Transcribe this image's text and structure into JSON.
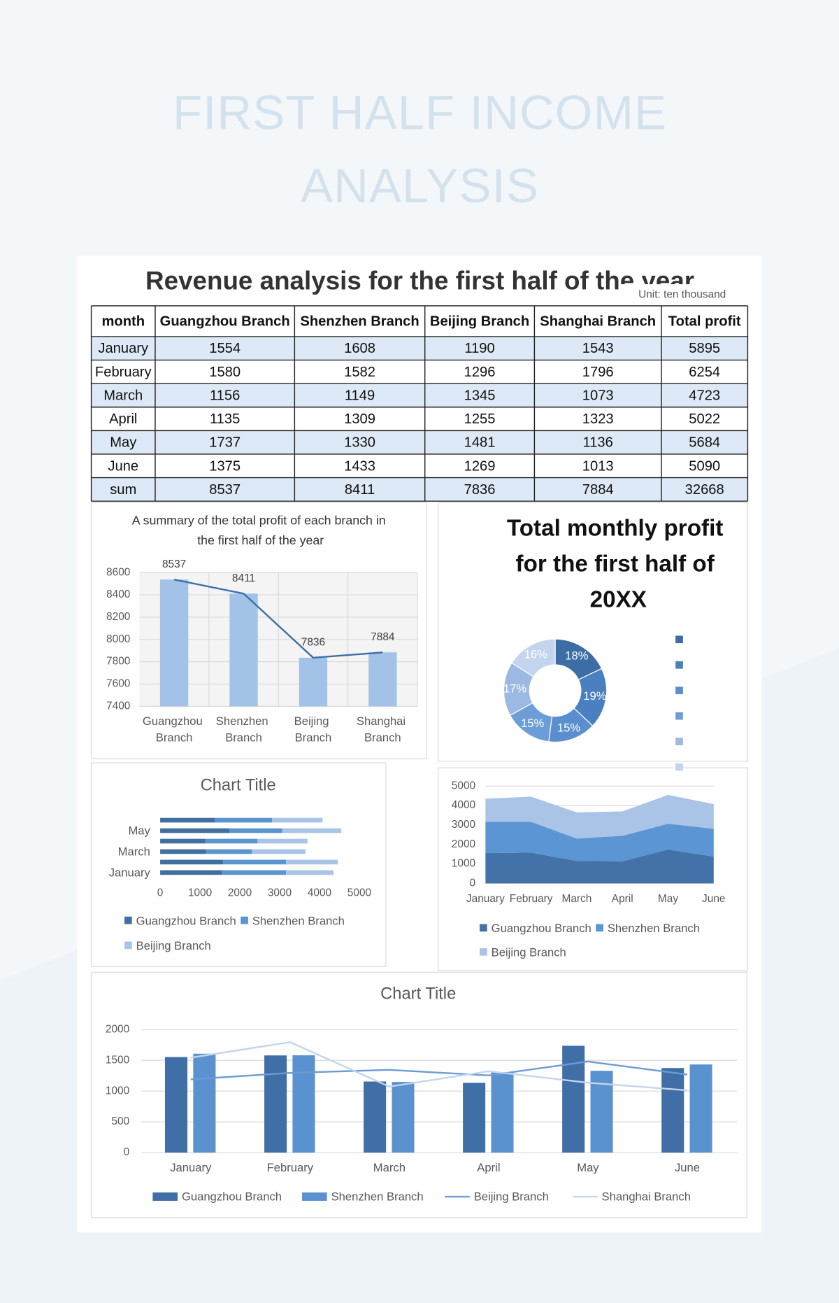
{
  "header": {
    "title_lines": [
      "FIRST HALF INCOME",
      "ANALYSIS"
    ]
  },
  "table": {
    "title": "Revenue analysis for the first half of the year",
    "unit": "Unit: ten thousand",
    "columns": [
      "month",
      "Guangzhou Branch",
      "Shenzhen Branch",
      "Beijing Branch",
      "Shanghai Branch",
      "Total profit"
    ],
    "rows": [
      [
        "January",
        1554,
        1608,
        1190,
        1543,
        5895
      ],
      [
        "February",
        1580,
        1582,
        1296,
        1796,
        6254
      ],
      [
        "March",
        1156,
        1149,
        1345,
        1073,
        4723
      ],
      [
        "April",
        1135,
        1309,
        1255,
        1323,
        5022
      ],
      [
        "May",
        1737,
        1330,
        1481,
        1136,
        5684
      ],
      [
        "June",
        1375,
        1433,
        1269,
        1013,
        5090
      ],
      [
        "sum",
        8537,
        8411,
        7836,
        7884,
        32668
      ]
    ]
  },
  "chart_data": [
    {
      "type": "bar",
      "title": "A summary of the total profit of each branch in the first half of the year",
      "categories": [
        "Guangzhou Branch",
        "Shenzhen Branch",
        "Beijing Branch",
        "Shanghai Branch"
      ],
      "values": [
        8537,
        8411,
        7836,
        7884
      ],
      "color": "#a3c2e7",
      "line": true,
      "line_color": "#3b6ea6",
      "ylim": [
        7400,
        8600
      ],
      "yticks": [
        7400,
        7600,
        7800,
        8000,
        8200,
        8400,
        8600
      ],
      "grid": true
    },
    {
      "type": "donut",
      "title": "Total monthly profit for the first half of 20XX",
      "values": [
        18,
        19,
        15,
        15,
        17,
        16
      ],
      "value_labels": [
        "18%",
        "19%",
        "15%",
        "15%",
        "17%",
        "16%"
      ],
      "colors": [
        "#3d6da5",
        "#4a80c0",
        "#5a8ecf",
        "#6d9dd7",
        "#9bb9e3",
        "#c2d4ee"
      ],
      "legend": "right"
    },
    {
      "type": "stacked-barh",
      "title": "Chart Title",
      "categories": [
        "January",
        null,
        "March",
        null,
        "May",
        null
      ],
      "series": [
        {
          "name": "Guangzhou Branch",
          "color": "#41709f",
          "values": [
            1554,
            1580,
            1156,
            1135,
            1737,
            1375
          ]
        },
        {
          "name": "Shenzhen Branch",
          "color": "#5b95cf",
          "values": [
            1608,
            1582,
            1149,
            1309,
            1330,
            1433
          ]
        },
        {
          "name": "Beijing Branch",
          "color": "#a9c4e6",
          "values": [
            1190,
            1296,
            1345,
            1255,
            1481,
            1269
          ]
        }
      ],
      "xlim": [
        0,
        5000
      ],
      "xticks": [
        0,
        1000,
        2000,
        3000,
        4000,
        5000
      ],
      "legend": "bottom"
    },
    {
      "type": "stacked-area",
      "categories": [
        "January",
        "February",
        "March",
        "April",
        "May",
        "June"
      ],
      "series": [
        {
          "name": "Guangzhou Branch",
          "color": "#4272a8",
          "values": [
            1554,
            1580,
            1156,
            1135,
            1737,
            1375
          ]
        },
        {
          "name": "Shenzhen Branch",
          "color": "#5b95d4",
          "values": [
            1608,
            1582,
            1149,
            1309,
            1330,
            1433
          ]
        },
        {
          "name": "Beijing Branch",
          "color": "#a9c4e6",
          "values": [
            1190,
            1296,
            1345,
            1255,
            1481,
            1269
          ]
        }
      ],
      "ylim": [
        0,
        5000
      ],
      "yticks": [
        0,
        1000,
        2000,
        3000,
        4000,
        5000
      ],
      "grid": true,
      "legend": "bottom"
    },
    {
      "type": "combo",
      "title": "Chart Title",
      "categories": [
        "January",
        "February",
        "March",
        "April",
        "May",
        "June"
      ],
      "series": [
        {
          "name": "Guangzhou Branch",
          "kind": "bar",
          "color": "#3f6fa6",
          "values": [
            1554,
            1580,
            1156,
            1135,
            1737,
            1375
          ]
        },
        {
          "name": "Shenzhen Branch",
          "kind": "bar",
          "color": "#5a92d0",
          "values": [
            1608,
            1582,
            1149,
            1309,
            1330,
            1433
          ]
        },
        {
          "name": "Beijing Branch",
          "kind": "line",
          "color": "#6a9bd3",
          "values": [
            1190,
            1296,
            1345,
            1255,
            1481,
            1269
          ]
        },
        {
          "name": "Shanghai Branch",
          "kind": "line",
          "color": "#c3d5ec",
          "values": [
            1543,
            1796,
            1073,
            1323,
            1136,
            1013
          ]
        }
      ],
      "ylim": [
        0,
        2000
      ],
      "yticks": [
        0,
        500,
        1000,
        1500,
        2000
      ],
      "grid": true,
      "legend": "bottom"
    }
  ]
}
